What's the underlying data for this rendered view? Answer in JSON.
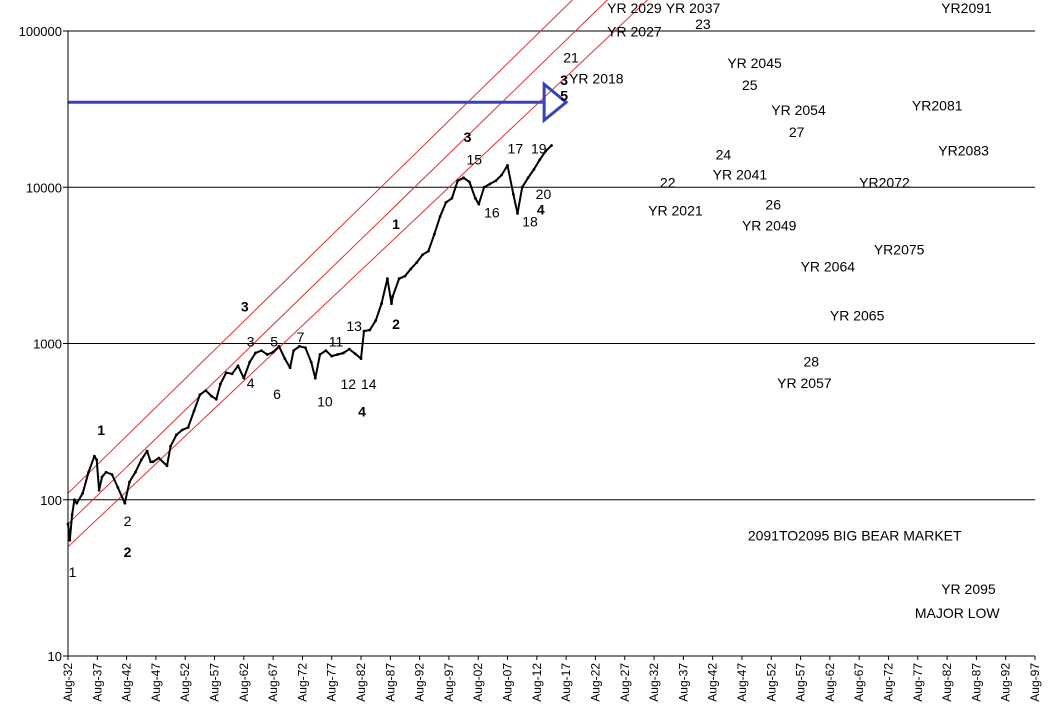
{
  "chart_data": {
    "type": "line",
    "title": "",
    "xlabel": "",
    "ylabel": "",
    "y_scale": "log",
    "ylim": [
      10,
      100000
    ],
    "xlim": [
      "Aug-32",
      "Aug-97"
    ],
    "grid": "horizontal",
    "y_ticks": [
      {
        "value": 10,
        "label": "10"
      },
      {
        "value": 100,
        "label": "100"
      },
      {
        "value": 1000,
        "label": "1000"
      },
      {
        "value": 10000,
        "label": "10000"
      },
      {
        "value": 100000,
        "label": "100000"
      }
    ],
    "x_ticks": [
      "Aug-32",
      "Aug-37",
      "Aug-42",
      "Aug-47",
      "Aug-52",
      "Aug-57",
      "Aug-62",
      "Aug-67",
      "Aug-72",
      "Aug-77",
      "Aug-82",
      "Aug-87",
      "Aug-92",
      "Aug-97",
      "Aug-02",
      "Aug-07",
      "Aug-12",
      "Aug-17",
      "Aug-22",
      "Aug-27",
      "Aug-32",
      "Aug-37",
      "Aug-42",
      "Aug-47",
      "Aug-52",
      "Aug-57",
      "Aug-62",
      "Aug-67",
      "Aug-72",
      "Aug-77",
      "Aug-82",
      "Aug-87",
      "Aug-92",
      "Aug-97"
    ],
    "series_color": "#000000",
    "channel_color": "#e03030",
    "arrow_color": "#3344bb",
    "series": [
      {
        "x": [
          1932.5,
          1932.8,
          1933.2,
          1933.6,
          1934.0,
          1935.0,
          1936.0,
          1937.0,
          1937.4,
          1937.8,
          1938.3,
          1939.0,
          1940.0,
          1941.0,
          1942.2,
          1943.0,
          1944.0,
          1945.0,
          1946.0,
          1946.6,
          1947.0,
          1948.0,
          1949.4,
          1950.0,
          1951.0,
          1952.0,
          1953.0,
          1954.0,
          1955.0,
          1956.0,
          1957.0,
          1957.8,
          1958.5,
          1959.5,
          1960.5,
          1961.5,
          1962.5,
          1963.5,
          1964.5,
          1965.5,
          1966.5,
          1967.5,
          1968.5,
          1969.5,
          1970.4,
          1971.0,
          1972.0,
          1973.0,
          1974.0,
          1974.7,
          1975.5,
          1976.5,
          1977.5,
          1978.5,
          1979.5,
          1980.5,
          1981.5,
          1982.5,
          1983.0,
          1984.0,
          1985.0,
          1986.0,
          1987.0,
          1987.7,
          1987.9,
          1989.0,
          1990.0,
          1991.0,
          1992.0,
          1993.0,
          1994.0,
          1995.0,
          1996.0,
          1997.0,
          1998.0,
          1999.0,
          2000.0,
          2001.0,
          2002.0,
          2002.6,
          2003.5,
          2004.5,
          2005.5,
          2006.5,
          2007.5,
          2008.5,
          2009.2,
          2010.0,
          2011.0,
          2012.0,
          2013.0,
          2014.0,
          2015.0
        ],
        "values": [
          70,
          55,
          80,
          100,
          95,
          110,
          150,
          190,
          180,
          115,
          140,
          150,
          145,
          120,
          95,
          130,
          150,
          180,
          205,
          175,
          175,
          185,
          165,
          220,
          260,
          280,
          290,
          370,
          470,
          500,
          460,
          440,
          550,
          650,
          640,
          720,
          600,
          760,
          870,
          900,
          850,
          880,
          960,
          800,
          700,
          900,
          960,
          940,
          760,
          600,
          850,
          900,
          830,
          850,
          870,
          920,
          860,
          800,
          1200,
          1220,
          1400,
          1800,
          2600,
          1800,
          2000,
          2600,
          2700,
          3000,
          3300,
          3700,
          3900,
          5000,
          6500,
          8000,
          8500,
          11000,
          11500,
          10800,
          8500,
          7800,
          10000,
          10500,
          11000,
          12000,
          13800,
          9000,
          6800,
          10000,
          11500,
          13000,
          15000,
          17000,
          18500
        ]
      }
    ],
    "channel_lines": [
      {
        "x": [
          1932.5,
          2024.0
        ],
        "values": [
          110,
          250000
        ]
      },
      {
        "x": [
          1932.5,
          2030.0
        ],
        "values": [
          70,
          250000
        ]
      },
      {
        "x": [
          1932.5,
          2037.0
        ],
        "values": [
          50,
          250000
        ]
      }
    ],
    "arrow": {
      "x": [
        1932.5,
        2017.5
      ],
      "value": 35000
    },
    "labels": [
      {
        "text": "1",
        "x": 1932.6,
        "y": 32,
        "bold": false
      },
      {
        "text": "1",
        "x": 1937.5,
        "y": 260,
        "bold": true
      },
      {
        "text": "2",
        "x": 1942.0,
        "y": 68,
        "bold": false
      },
      {
        "text": "2",
        "x": 1942.0,
        "y": 43,
        "bold": true
      },
      {
        "text": "3",
        "x": 1962.0,
        "y": 1600,
        "bold": true
      },
      {
        "text": "3",
        "x": 1963.0,
        "y": 960,
        "bold": false
      },
      {
        "text": "4",
        "x": 1963.0,
        "y": 520,
        "bold": false
      },
      {
        "text": "5",
        "x": 1967.0,
        "y": 960,
        "bold": false
      },
      {
        "text": "6",
        "x": 1967.5,
        "y": 440,
        "bold": false
      },
      {
        "text": "7",
        "x": 1971.5,
        "y": 1020,
        "bold": false
      },
      {
        "text": "10",
        "x": 1975.0,
        "y": 395,
        "bold": false
      },
      {
        "text": "11",
        "x": 1977.0,
        "y": 960,
        "bold": false
      },
      {
        "text": "12",
        "x": 1979.0,
        "y": 510,
        "bold": false
      },
      {
        "text": "13",
        "x": 1980.0,
        "y": 1200,
        "bold": false
      },
      {
        "text": "14",
        "x": 1982.5,
        "y": 510,
        "bold": false
      },
      {
        "text": "4",
        "x": 1982.0,
        "y": 340,
        "bold": true
      },
      {
        "text": "1",
        "x": 1987.8,
        "y": 5400,
        "bold": true
      },
      {
        "text": "2",
        "x": 1987.8,
        "y": 1240,
        "bold": true
      },
      {
        "text": "3",
        "x": 2000.0,
        "y": 19500,
        "bold": true
      },
      {
        "text": "15",
        "x": 2000.5,
        "y": 14000,
        "bold": false
      },
      {
        "text": "16",
        "x": 2003.5,
        "y": 6400,
        "bold": false
      },
      {
        "text": "17",
        "x": 2007.5,
        "y": 16500,
        "bold": false
      },
      {
        "text": "18",
        "x": 2010.0,
        "y": 5600,
        "bold": false
      },
      {
        "text": "19",
        "x": 2011.5,
        "y": 16500,
        "bold": false
      },
      {
        "text": "20",
        "x": 2012.3,
        "y": 8400,
        "bold": false
      },
      {
        "text": "4",
        "x": 2012.5,
        "y": 6700,
        "bold": true
      },
      {
        "text": "21",
        "x": 2017.0,
        "y": 63000,
        "bold": false
      },
      {
        "text": "3",
        "x": 2016.5,
        "y": 45000,
        "bold": true
      },
      {
        "text": "5",
        "x": 2016.5,
        "y": 36000,
        "bold": true
      },
      {
        "text": "YR 2018",
        "x": 2018.0,
        "y": 46000,
        "bold": false
      },
      {
        "text": "YR 2029",
        "x": 2024.5,
        "y": 130000,
        "bold": false
      },
      {
        "text": "YR 2027",
        "x": 2024.5,
        "y": 92000,
        "bold": false
      },
      {
        "text": "YR 2037",
        "x": 2034.5,
        "y": 130000,
        "bold": false
      },
      {
        "text": "23",
        "x": 2039.5,
        "y": 103000,
        "bold": false
      },
      {
        "text": "YR 2045",
        "x": 2045.0,
        "y": 58000,
        "bold": false
      },
      {
        "text": "25",
        "x": 2047.5,
        "y": 42000,
        "bold": false
      },
      {
        "text": "YR 2054",
        "x": 2052.5,
        "y": 29000,
        "bold": false
      },
      {
        "text": "27",
        "x": 2055.5,
        "y": 21000,
        "bold": false
      },
      {
        "text": "YR2081",
        "x": 2076.5,
        "y": 31000,
        "bold": false
      },
      {
        "text": "YR2083",
        "x": 2081.0,
        "y": 16000,
        "bold": false
      },
      {
        "text": "YR2091",
        "x": 2081.5,
        "y": 130000,
        "bold": false
      },
      {
        "text": "24",
        "x": 2043.0,
        "y": 15000,
        "bold": false
      },
      {
        "text": "YR 2041",
        "x": 2042.5,
        "y": 11200,
        "bold": false
      },
      {
        "text": "22",
        "x": 2033.5,
        "y": 10000,
        "bold": false
      },
      {
        "text": "YR 2021",
        "x": 2031.5,
        "y": 6600,
        "bold": false
      },
      {
        "text": "26",
        "x": 2051.5,
        "y": 7200,
        "bold": false
      },
      {
        "text": "YR 2049",
        "x": 2047.5,
        "y": 5300,
        "bold": false
      },
      {
        "text": "YR2072",
        "x": 2067.5,
        "y": 10000,
        "bold": false
      },
      {
        "text": "YR2075",
        "x": 2070.0,
        "y": 3700,
        "bold": false
      },
      {
        "text": "YR 2064",
        "x": 2057.5,
        "y": 2900,
        "bold": false
      },
      {
        "text": "YR 2065",
        "x": 2062.5,
        "y": 1400,
        "bold": false
      },
      {
        "text": "28",
        "x": 2058.0,
        "y": 710,
        "bold": false
      },
      {
        "text": "YR 2057",
        "x": 2053.5,
        "y": 520,
        "bold": false
      },
      {
        "text": "2091TO2095 BIG BEAR MARKET",
        "x": 2048.5,
        "y": 55,
        "bold": false
      },
      {
        "text": "YR 2095",
        "x": 2081.5,
        "y": 25,
        "bold": false
      },
      {
        "text": "MAJOR LOW",
        "x": 2077.0,
        "y": 17.5,
        "bold": false
      }
    ]
  }
}
